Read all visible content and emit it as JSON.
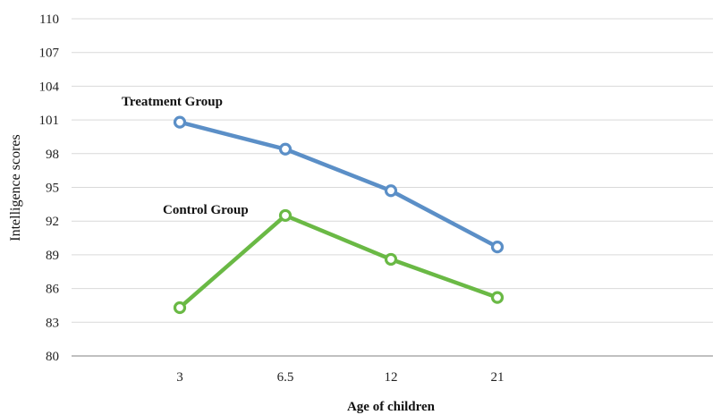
{
  "chart_data": {
    "type": "line",
    "title": "",
    "xlabel": "Age of children",
    "ylabel": "Intelligence scores",
    "categories": [
      "3",
      "6.5",
      "12",
      "21"
    ],
    "yticks": [
      80,
      83,
      86,
      89,
      92,
      95,
      98,
      101,
      104,
      107,
      110
    ],
    "ylim": [
      80,
      110
    ],
    "grid": true,
    "series": [
      {
        "name": "Treatment Group",
        "color": "#5b8fc7",
        "values": [
          100.8,
          98.4,
          94.7,
          89.7
        ]
      },
      {
        "name": "Control Group",
        "color": "#6ab945",
        "values": [
          84.3,
          92.5,
          88.6,
          85.2
        ]
      }
    ]
  }
}
